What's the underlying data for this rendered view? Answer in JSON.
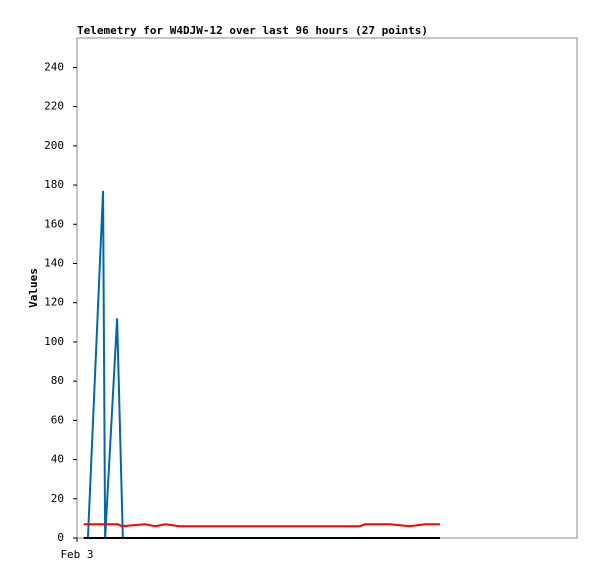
{
  "chart_data": {
    "type": "line",
    "title": "Telemetry for W4DJW-12 over last 96 hours (27 points)",
    "ylabel": "Values",
    "xlim": [
      0,
      96
    ],
    "xticks": [
      {
        "value": 0,
        "label": "Feb 3"
      }
    ],
    "ylim": [
      0,
      255
    ],
    "yticks": [
      0,
      20,
      40,
      60,
      80,
      100,
      120,
      140,
      160,
      180,
      200,
      220,
      240
    ],
    "series": [
      {
        "color": "#0066b3",
        "x": [
          2.1,
          5.0,
          5.4,
          7.7,
          8.8
        ],
        "values": [
          0,
          177,
          0,
          112,
          0
        ]
      },
      {
        "color": "#ff0000",
        "x": [
          1.3,
          7.9,
          8.6,
          13.1,
          15.0,
          16.9,
          19.8,
          54.3,
          55.3,
          60.1,
          63.9,
          66.8,
          69.7
        ],
        "values": [
          7,
          7,
          6,
          7,
          6,
          7,
          6,
          6,
          7,
          7,
          6,
          7,
          7
        ]
      },
      {
        "color": "#000000",
        "x": [
          1.3,
          69.7
        ],
        "values": [
          0,
          0
        ]
      }
    ]
  }
}
